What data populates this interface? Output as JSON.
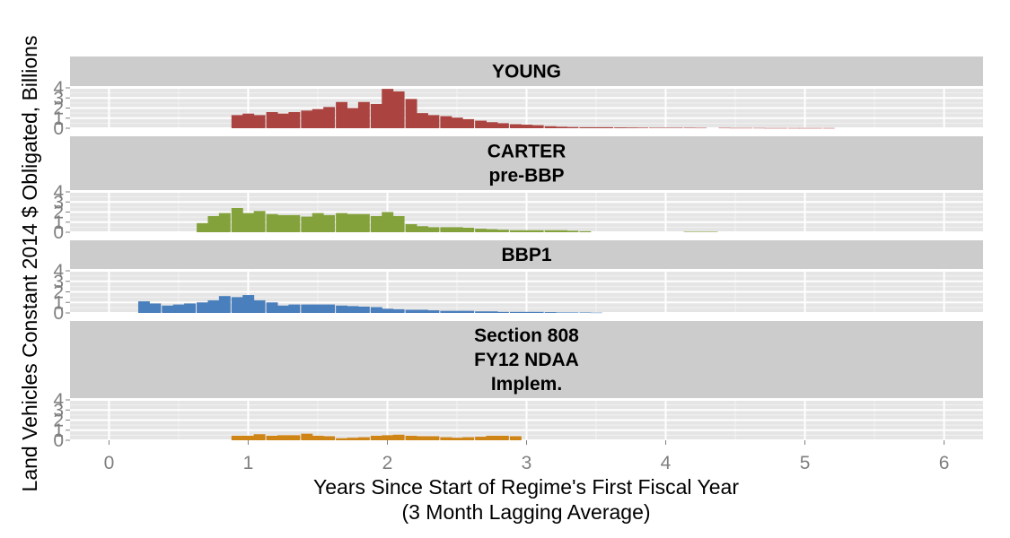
{
  "chart_data": {
    "type": "bar",
    "xlabel": "Years Since Start of Regime's First Fiscal Year",
    "xlabel_line2": "(3 Month Lagging Average)",
    "ylabel": "Land Vehicles Constant 2014 $ Obligated, Billions",
    "xlim": [
      -0.28,
      6.28
    ],
    "ylim": [
      0,
      4
    ],
    "x_ticks": [
      0,
      1,
      2,
      3,
      4,
      5,
      6
    ],
    "x_tick_labels": [
      "0",
      "1",
      "2",
      "3",
      "4",
      "5",
      "6"
    ],
    "y_ticks": [
      0,
      1,
      2,
      3,
      4
    ],
    "y_tick_labels": [
      "0",
      "1",
      "2",
      "3",
      "4"
    ],
    "bin_width": 0.0833,
    "grid": true,
    "legend": "none",
    "panels": [
      {
        "strip": [
          "YOUNG"
        ],
        "color": "#ab4440",
        "x": [
          0.88,
          0.96,
          1.04,
          1.13,
          1.21,
          1.29,
          1.38,
          1.46,
          1.54,
          1.63,
          1.71,
          1.79,
          1.88,
          1.96,
          2.04,
          2.13,
          2.21,
          2.29,
          2.38,
          2.46,
          2.54,
          2.63,
          2.71,
          2.79,
          2.88,
          2.96,
          3.04,
          3.13,
          3.21,
          3.29,
          3.38,
          3.46,
          3.54,
          3.63,
          3.71,
          3.79,
          3.88,
          3.96,
          4.04,
          4.13,
          4.21,
          4.38,
          4.46,
          4.54,
          4.63,
          4.71,
          4.79,
          4.88,
          4.96,
          5.04,
          5.13
        ],
        "values": [
          1.3,
          1.45,
          1.3,
          1.6,
          1.45,
          1.6,
          1.75,
          1.9,
          2.1,
          2.6,
          2.0,
          2.6,
          2.4,
          3.9,
          3.65,
          2.9,
          1.5,
          1.3,
          1.2,
          1.05,
          0.9,
          0.75,
          0.6,
          0.5,
          0.4,
          0.35,
          0.3,
          0.2,
          0.15,
          0.12,
          0.1,
          0.1,
          0.1,
          0.08,
          0.07,
          0.06,
          0.05,
          0.05,
          0.05,
          0.05,
          0.04,
          0.04,
          0.03,
          0.03,
          0.03,
          0.02,
          0.02,
          0.02,
          0.02,
          0.02,
          0.02
        ]
      },
      {
        "strip": [
          "CARTER",
          "pre-BBP"
        ],
        "color": "#84a23c",
        "x": [
          0.63,
          0.71,
          0.79,
          0.88,
          0.96,
          1.04,
          1.13,
          1.21,
          1.29,
          1.38,
          1.46,
          1.54,
          1.63,
          1.71,
          1.79,
          1.88,
          1.96,
          2.04,
          2.13,
          2.21,
          2.29,
          2.38,
          2.46,
          2.54,
          2.63,
          2.71,
          2.79,
          2.88,
          2.96,
          3.04,
          3.13,
          3.21,
          3.29,
          3.38,
          4.13,
          4.21,
          4.29
        ],
        "values": [
          0.9,
          1.6,
          1.9,
          2.4,
          1.9,
          2.1,
          1.8,
          1.7,
          1.7,
          1.55,
          1.9,
          1.7,
          1.9,
          1.8,
          1.8,
          1.6,
          2.0,
          1.6,
          0.8,
          0.6,
          0.5,
          0.5,
          0.5,
          0.45,
          0.35,
          0.3,
          0.25,
          0.2,
          0.2,
          0.2,
          0.2,
          0.2,
          0.15,
          0.1,
          0.05,
          0.05,
          0.05
        ]
      },
      {
        "strip": [
          "BBP1"
        ],
        "color": "#4a7fbd",
        "x": [
          0.21,
          0.29,
          0.38,
          0.46,
          0.54,
          0.63,
          0.71,
          0.79,
          0.88,
          0.96,
          1.04,
          1.13,
          1.21,
          1.29,
          1.38,
          1.46,
          1.54,
          1.63,
          1.71,
          1.79,
          1.88,
          1.96,
          2.04,
          2.13,
          2.21,
          2.29,
          2.38,
          2.46,
          2.54,
          2.63,
          2.71,
          2.79,
          2.88,
          2.96,
          3.04,
          3.13,
          3.21,
          3.29,
          3.38,
          3.46
        ],
        "values": [
          1.1,
          0.9,
          0.7,
          0.8,
          0.9,
          1.0,
          1.2,
          1.6,
          1.5,
          1.7,
          1.2,
          1.0,
          0.7,
          0.8,
          0.8,
          0.8,
          0.8,
          0.7,
          0.65,
          0.6,
          0.55,
          0.4,
          0.35,
          0.3,
          0.3,
          0.25,
          0.2,
          0.2,
          0.2,
          0.15,
          0.15,
          0.1,
          0.1,
          0.1,
          0.1,
          0.08,
          0.05,
          0.05,
          0.05,
          0.03
        ]
      },
      {
        "strip": [
          "Section 808",
          "FY12 NDAA",
          "Implem."
        ],
        "color": "#cf8416",
        "x": [
          0.88,
          0.96,
          1.04,
          1.13,
          1.21,
          1.29,
          1.38,
          1.46,
          1.54,
          1.63,
          1.71,
          1.79,
          1.88,
          1.96,
          2.04,
          2.13,
          2.21,
          2.29,
          2.38,
          2.46,
          2.54,
          2.63,
          2.71,
          2.79,
          2.88
        ],
        "values": [
          0.45,
          0.45,
          0.6,
          0.45,
          0.5,
          0.5,
          0.65,
          0.45,
          0.4,
          0.2,
          0.25,
          0.3,
          0.45,
          0.5,
          0.55,
          0.45,
          0.4,
          0.4,
          0.3,
          0.25,
          0.3,
          0.35,
          0.45,
          0.45,
          0.4
        ]
      }
    ]
  }
}
